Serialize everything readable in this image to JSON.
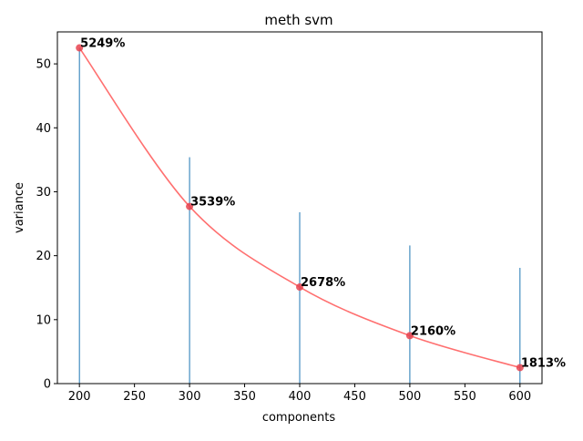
{
  "chart_data": {
    "type": "line",
    "title": "meth svm",
    "xlabel": "components",
    "ylabel": "variance",
    "xlim": [
      180,
      620
    ],
    "ylim": [
      0,
      55
    ],
    "xticks": [
      200,
      250,
      300,
      350,
      400,
      450,
      500,
      550,
      600
    ],
    "yticks": [
      0,
      10,
      20,
      30,
      40,
      50
    ],
    "grid": false,
    "colors": {
      "line": "#ff7070",
      "marker": "#e8434f",
      "bars": "#1f77b4",
      "text": "#000000"
    },
    "series": [
      {
        "type": "line",
        "x": [
          200,
          300,
          400,
          500,
          600
        ],
        "values": [
          52.5,
          27.7,
          15.1,
          7.5,
          2.5
        ],
        "labels": [
          "5249%",
          "3539%",
          "2678%",
          "2160%",
          "1813%"
        ]
      },
      {
        "type": "bar",
        "x": [
          200,
          300,
          400,
          500,
          600
        ],
        "values": [
          52.5,
          35.4,
          26.8,
          21.6,
          18.1
        ]
      }
    ]
  }
}
